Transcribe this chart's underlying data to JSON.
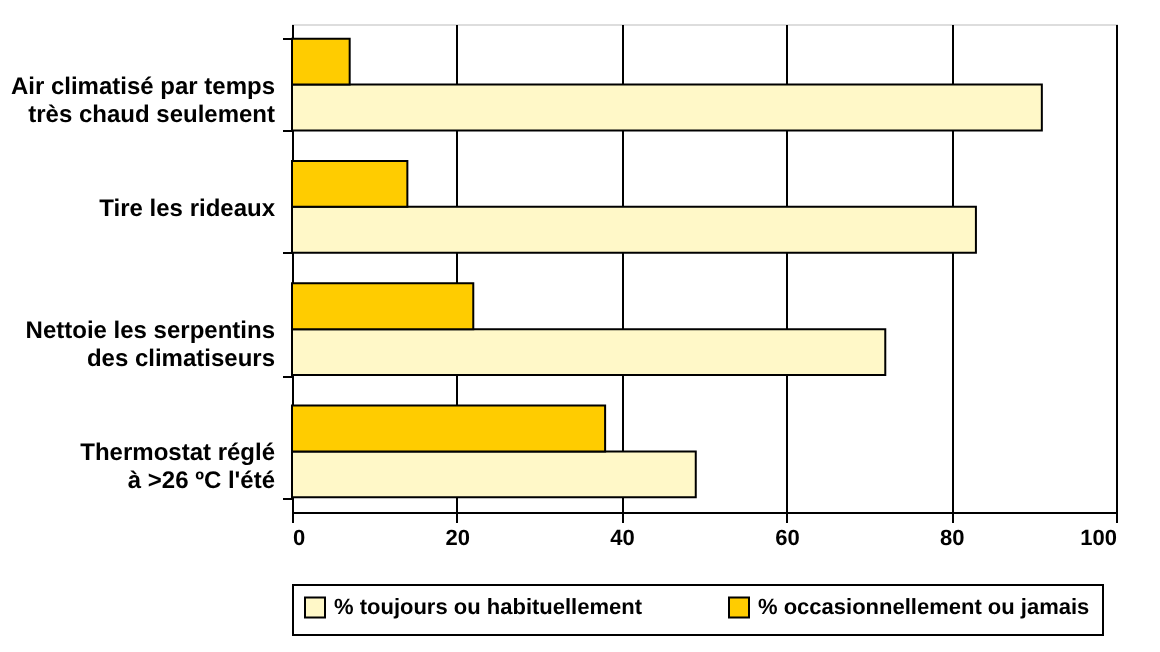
{
  "chart_data": {
    "type": "bar",
    "orientation": "horizontal",
    "categories": [
      "Air climatisé par temps\ntrès chaud seulement",
      "Tire les rideaux",
      "Nettoie les serpentins\ndes climatiseurs",
      "Thermostat réglé\nà >26 ºC l'été"
    ],
    "series": [
      {
        "name": "% toujours ou habituellement",
        "color": "#fff8c8",
        "values": [
          91,
          83,
          72,
          49
        ]
      },
      {
        "name": "% occasionnellement ou jamais",
        "color": "#ffcc00",
        "values": [
          7,
          14,
          22,
          38
        ]
      }
    ],
    "xlim": [
      0,
      100
    ],
    "xticks": [
      0,
      20,
      40,
      60,
      80,
      100
    ],
    "grid": "x",
    "legend": "bottom"
  }
}
